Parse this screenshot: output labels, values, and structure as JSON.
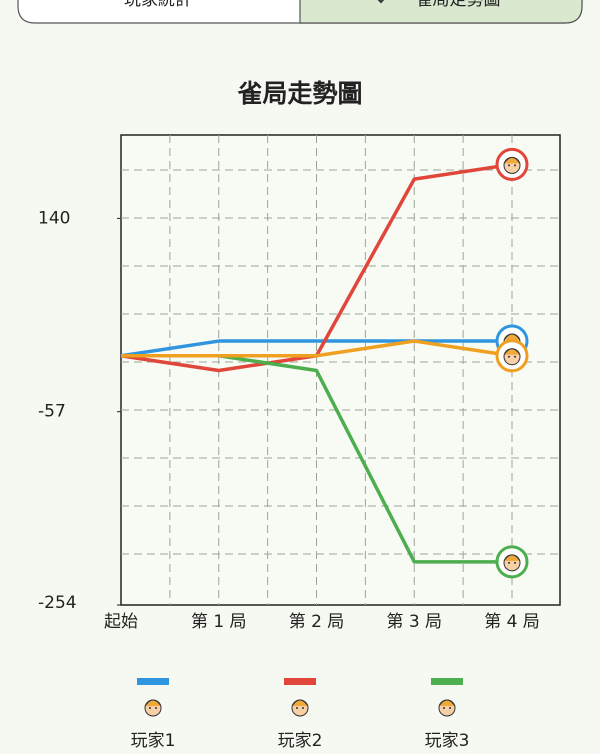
{
  "tabs": [
    "玩家統計",
    "雀局走勢圖"
  ],
  "chart_data": {
    "type": "line",
    "title": "雀局走勢圖",
    "categories": [
      "起始",
      "第 1 局",
      "第 2 局",
      "第 3 局",
      "第 4 局"
    ],
    "series": [
      {
        "name": "玩家1",
        "color": "#2f95e0",
        "values": [
          0,
          15,
          15,
          15,
          15
        ]
      },
      {
        "name": "玩家2",
        "color": "#e0463a",
        "values": [
          0,
          -15,
          0,
          180,
          195
        ]
      },
      {
        "name": "玩家3",
        "color": "#4cae4c",
        "values": [
          0,
          0,
          -15,
          -210,
          -210
        ]
      },
      {
        "color": "#f0a020",
        "values": [
          0,
          0,
          0,
          15,
          0
        ]
      }
    ],
    "ylim": [
      -254,
      225
    ],
    "yticks": [
      140,
      -57,
      -254
    ],
    "grid": true
  }
}
